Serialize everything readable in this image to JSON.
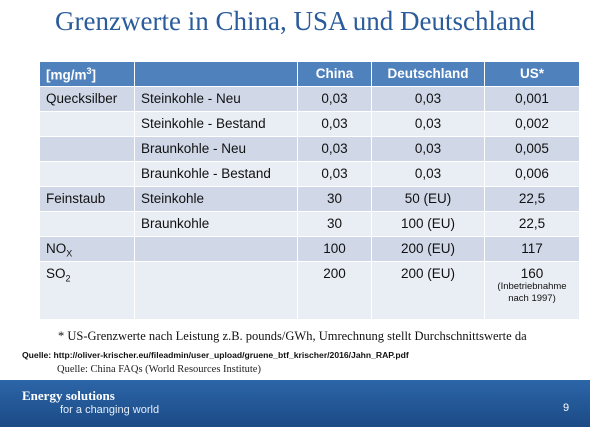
{
  "title": "Grenzwerte in China, USA und Deutschland",
  "table": {
    "header": [
      {
        "text": "[mg/m",
        "sup": "3",
        "suffix": "]"
      },
      null,
      "China",
      "Deutschland",
      "US*"
    ],
    "rows": [
      [
        "Quecksilber",
        "Steinkohle - Neu",
        "0,03",
        "0,03",
        "0,001"
      ],
      [
        null,
        "Steinkohle - Bestand",
        "0,03",
        "0,03",
        "0,002"
      ],
      [
        null,
        "Braunkohle - Neu",
        "0,03",
        "0,03",
        "0,005"
      ],
      [
        null,
        "Braunkohle - Bestand",
        "0,03",
        "0,03",
        "0,006"
      ],
      [
        "Feinstaub",
        "Steinkohle",
        "30",
        "50 (EU)",
        "22,5"
      ],
      [
        null,
        "Braunkohle",
        "30",
        "100 (EU)",
        "22,5"
      ],
      [
        {
          "text": "NO",
          "sub": "X"
        },
        null,
        "100",
        "200 (EU)",
        "117"
      ],
      [
        {
          "text": "SO",
          "sub": "2"
        },
        null,
        "200",
        "200 (EU)",
        {
          "text": "160",
          "note": [
            "(Inbetriebnahme",
            "nach 1997)"
          ]
        }
      ]
    ]
  },
  "footnote": "* US-Grenzwerte nach Leistung z.B. pounds/GWh, Umrechnung stellt Durchschnittswerte da",
  "source_1": "Quelle: http://oliver-krischer.eu/fileadmin/user_upload/gruene_btf_krischer/2016/Jahn_RAP.pdf",
  "source_2": "Quelle: China FAQs (World Resources Institute)",
  "footer": {
    "line_1": "Energy solutions",
    "line_2": "for a changing world",
    "page": "9"
  }
}
